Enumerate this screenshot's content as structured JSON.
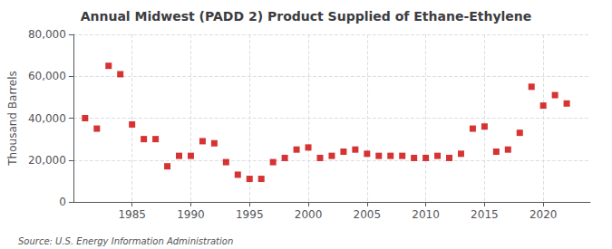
{
  "chart_data": {
    "type": "scatter",
    "title": "Annual Midwest (PADD 2) Product Supplied of Ethane-Ethylene",
    "ylabel": "Thousand Barrels",
    "annotations": [
      "Source: U.S. Energy Information Administration"
    ],
    "x": [
      1981,
      1982,
      1983,
      1984,
      1985,
      1986,
      1987,
      1988,
      1989,
      1990,
      1991,
      1992,
      1993,
      1994,
      1995,
      1996,
      1997,
      1998,
      1999,
      2000,
      2001,
      2002,
      2003,
      2004,
      2005,
      2006,
      2007,
      2008,
      2009,
      2010,
      2011,
      2012,
      2013,
      2014,
      2015,
      2016,
      2017,
      2018,
      2019,
      2020,
      2021,
      2022
    ],
    "values": [
      40000,
      35000,
      65000,
      61000,
      37000,
      30000,
      30000,
      17000,
      22000,
      22000,
      29000,
      28000,
      19000,
      13000,
      11000,
      11000,
      19000,
      21000,
      25000,
      26000,
      21000,
      22000,
      24000,
      25000,
      23000,
      22000,
      22000,
      22000,
      21000,
      21000,
      22000,
      21000,
      23000,
      35000,
      36000,
      24000,
      25000,
      33000,
      55000,
      46000,
      51000,
      47000
    ],
    "color": "#cc0000",
    "marker": "square",
    "xlim": [
      1980,
      2024
    ],
    "xticks": [
      1985,
      1990,
      1995,
      2000,
      2005,
      2010,
      2015,
      2020
    ],
    "ylim": [
      0,
      80000
    ],
    "yticks": [
      0,
      {
        "value": 20000,
        "label": "20,000"
      },
      {
        "value": 40000,
        "label": "40,000"
      },
      {
        "value": 60000,
        "label": "60,000"
      },
      {
        "value": 80000,
        "label": "80,000"
      }
    ],
    "grid": true
  }
}
